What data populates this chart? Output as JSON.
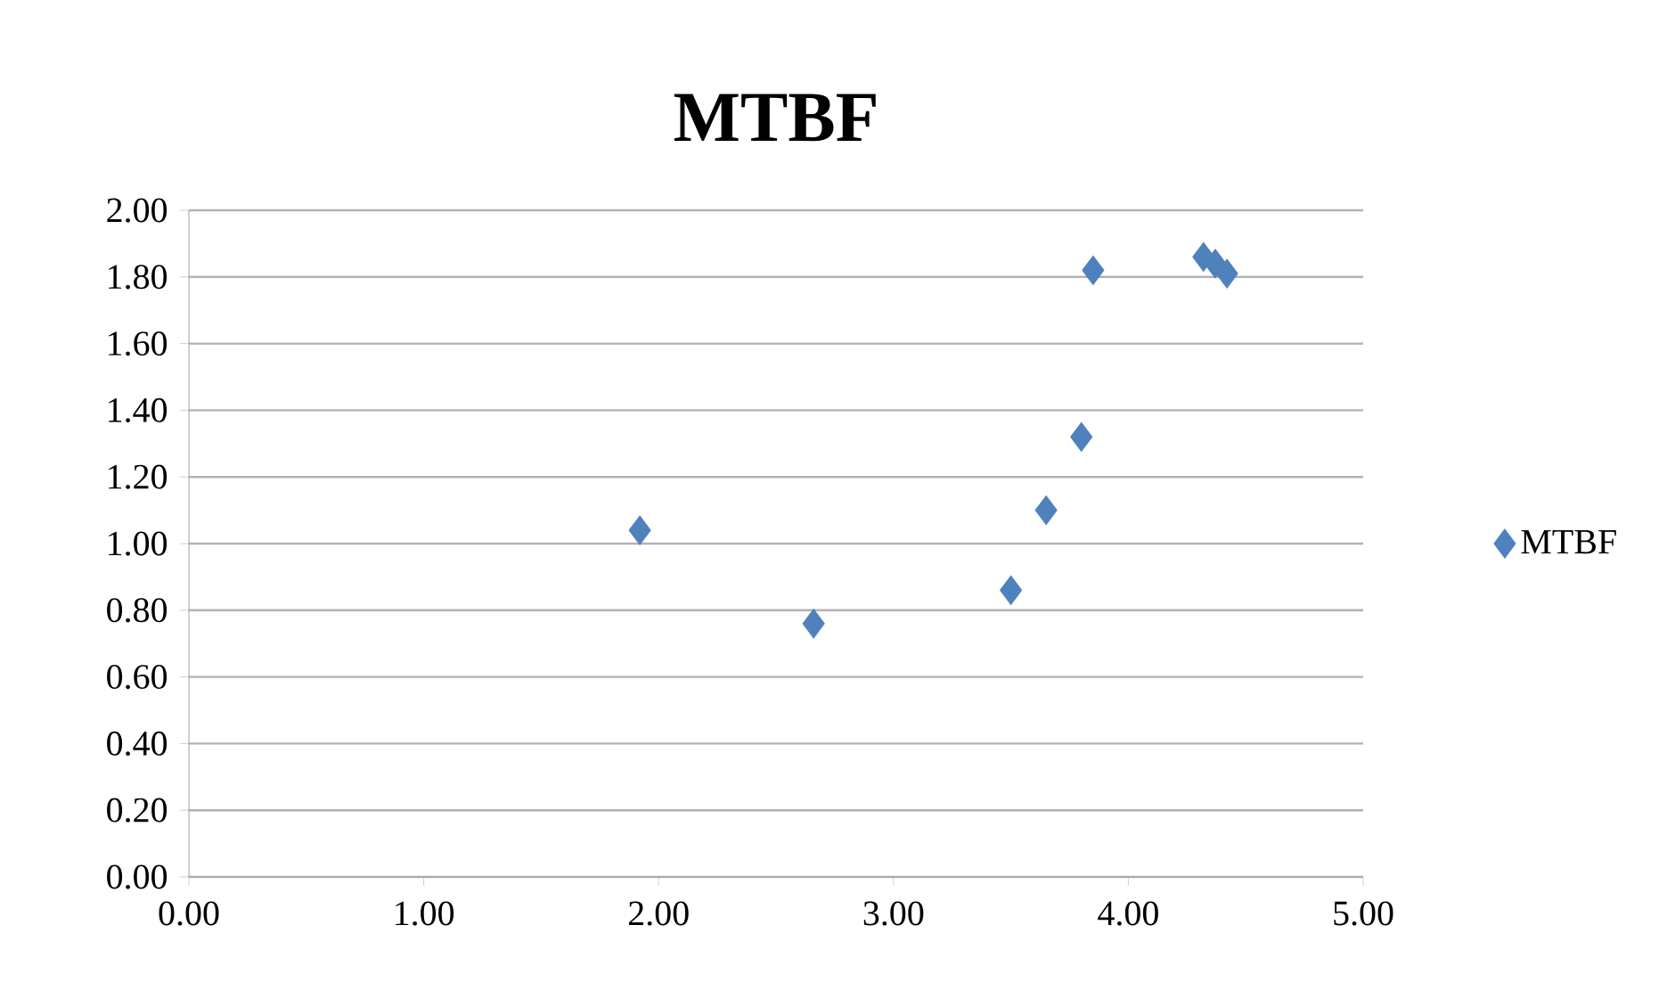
{
  "chart_data": {
    "type": "scatter",
    "title": "MTBF",
    "series": [
      {
        "name": "MTBF",
        "color": "#4f81bd",
        "x": [
          1.92,
          2.66,
          3.48,
          3.5,
          3.65,
          3.8,
          3.85,
          4.32,
          4.37,
          4.42
        ],
        "values": [
          1.04,
          0.76,
          null,
          0.86,
          1.1,
          1.32,
          1.82,
          1.86,
          1.84,
          1.81
        ]
      }
    ],
    "marker": "diamond",
    "grid": "y",
    "legend": "right",
    "xlim": [
      0,
      5
    ],
    "ylim": [
      0,
      2
    ],
    "xticks": [
      {
        "value": 0,
        "label": "0.00"
      },
      {
        "value": 1,
        "label": "1.00"
      },
      {
        "value": 2,
        "label": "2.00"
      },
      {
        "value": 3,
        "label": "3.00"
      },
      {
        "value": 4,
        "label": "4.00"
      },
      {
        "value": 5,
        "label": "5.00"
      }
    ],
    "yticks": [
      {
        "value": 0,
        "label": "0.00"
      },
      {
        "value": 0.2,
        "label": "0.20"
      },
      {
        "value": 0.4,
        "label": "0.40"
      },
      {
        "value": 0.6,
        "label": "0.60"
      },
      {
        "value": 0.8,
        "label": "0.80"
      },
      {
        "value": 1.0,
        "label": "1.00"
      },
      {
        "value": 1.2,
        "label": "1.20"
      },
      {
        "value": 1.4,
        "label": "1.40"
      },
      {
        "value": 1.6,
        "label": "1.60"
      },
      {
        "value": 1.8,
        "label": "1.80"
      },
      {
        "value": 2.0,
        "label": "2.00"
      }
    ]
  }
}
